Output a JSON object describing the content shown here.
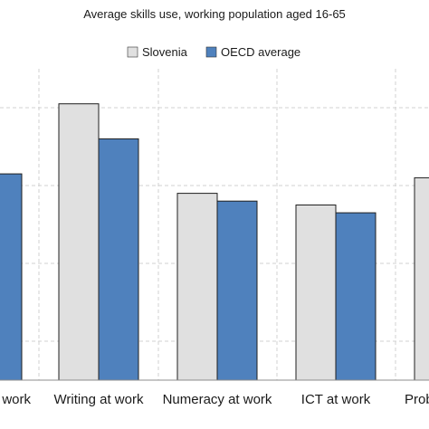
{
  "chart_data": {
    "type": "bar",
    "title": "Average skills use, working population aged 16-65",
    "categories": [
      "Reading at work",
      "Writing at work",
      "Numeracy at work",
      "ICT at work",
      "Problem solving at work"
    ],
    "category_labels_visible": [
      "work",
      "Writing at work",
      "Numeracy at work",
      "ICT at work",
      "Prob"
    ],
    "series": [
      {
        "name": "Slovenia",
        "color": "#e0e0e0",
        "values": [
          null,
          2.21,
          1.98,
          1.95,
          2.02
        ]
      },
      {
        "name": "OECD average",
        "color": "#4f81bd",
        "values": [
          2.03,
          2.12,
          1.96,
          1.93,
          null
        ]
      }
    ],
    "ylim": [
      1.5,
      2.3
    ],
    "grid": true,
    "legend_position": "top-right",
    "edge_color": "#1f1f1f"
  }
}
